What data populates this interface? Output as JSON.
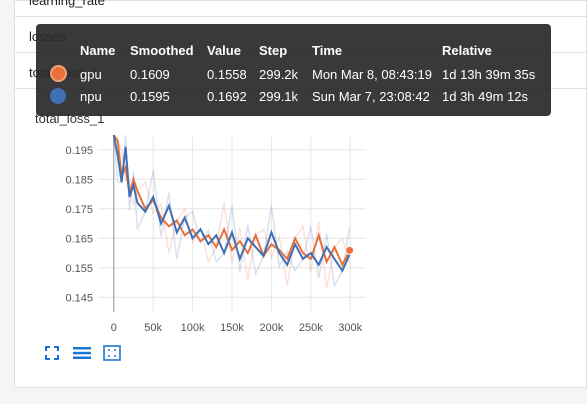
{
  "sections": {
    "items": [
      {
        "label": "learning_rate"
      },
      {
        "label": "losses"
      },
      {
        "label": "total_loss_1"
      }
    ]
  },
  "card": {
    "title": "total_loss_1"
  },
  "tooltip": {
    "headers": {
      "name": "Name",
      "smoothed": "Smoothed",
      "value": "Value",
      "step": "Step",
      "time": "Time",
      "relative": "Relative"
    },
    "rows": [
      {
        "name": "gpu",
        "color": "#e8703a",
        "smoothed": "0.1609",
        "value": "0.1558",
        "step": "299.2k",
        "time": "Mon Mar 8, 08:43:19",
        "relative": "1d 13h 39m 35s"
      },
      {
        "name": "npu",
        "color": "#3f6fb5",
        "smoothed": "0.1595",
        "value": "0.1692",
        "step": "299.1k",
        "time": "Sun Mar 7, 23:08:42",
        "relative": "1d 3h 49m 12s"
      }
    ]
  },
  "toolbar": {
    "icons": [
      "fullscreen-icon",
      "toggle-y-log-icon",
      "fit-domain-icon"
    ]
  },
  "chart_data": {
    "type": "line",
    "title": "total_loss_1",
    "xlabel": "",
    "ylabel": "",
    "xlim": [
      -20000,
      320000
    ],
    "ylim": [
      0.14,
      0.2
    ],
    "xticks": [
      "0",
      "50k",
      "100k",
      "150k",
      "200k",
      "250k",
      "300k"
    ],
    "xtick_values": [
      0,
      50000,
      100000,
      150000,
      200000,
      250000,
      300000
    ],
    "yticks": [
      "0.195",
      "0.185",
      "0.175",
      "0.165",
      "0.155",
      "0.145"
    ],
    "ytick_values": [
      0.195,
      0.185,
      0.175,
      0.165,
      0.155,
      0.145
    ],
    "grid": true,
    "series": [
      {
        "name": "gpu",
        "color": "#e8703a",
        "x": [
          0,
          5000,
          10000,
          15000,
          20000,
          25000,
          30000,
          40000,
          50000,
          60000,
          70000,
          80000,
          90000,
          100000,
          110000,
          120000,
          130000,
          140000,
          150000,
          160000,
          170000,
          180000,
          190000,
          200000,
          210000,
          220000,
          230000,
          240000,
          250000,
          260000,
          270000,
          280000,
          290000,
          299200
        ],
        "values": [
          0.205,
          0.198,
          0.186,
          0.189,
          0.18,
          0.185,
          0.181,
          0.175,
          0.178,
          0.172,
          0.169,
          0.171,
          0.166,
          0.168,
          0.164,
          0.166,
          0.162,
          0.168,
          0.161,
          0.164,
          0.16,
          0.166,
          0.159,
          0.163,
          0.161,
          0.158,
          0.165,
          0.16,
          0.158,
          0.166,
          0.157,
          0.162,
          0.156,
          0.1609
        ]
      },
      {
        "name": "npu",
        "color": "#3f6fb5",
        "x": [
          0,
          5000,
          10000,
          15000,
          20000,
          25000,
          30000,
          40000,
          50000,
          60000,
          70000,
          80000,
          90000,
          100000,
          110000,
          120000,
          130000,
          140000,
          150000,
          160000,
          170000,
          180000,
          190000,
          200000,
          210000,
          220000,
          230000,
          240000,
          250000,
          260000,
          270000,
          280000,
          290000,
          299100
        ],
        "values": [
          0.202,
          0.193,
          0.184,
          0.196,
          0.179,
          0.183,
          0.177,
          0.174,
          0.179,
          0.17,
          0.176,
          0.167,
          0.172,
          0.165,
          0.168,
          0.163,
          0.166,
          0.16,
          0.167,
          0.158,
          0.165,
          0.162,
          0.159,
          0.167,
          0.16,
          0.156,
          0.163,
          0.158,
          0.16,
          0.156,
          0.162,
          0.158,
          0.154,
          0.1595
        ]
      }
    ]
  }
}
